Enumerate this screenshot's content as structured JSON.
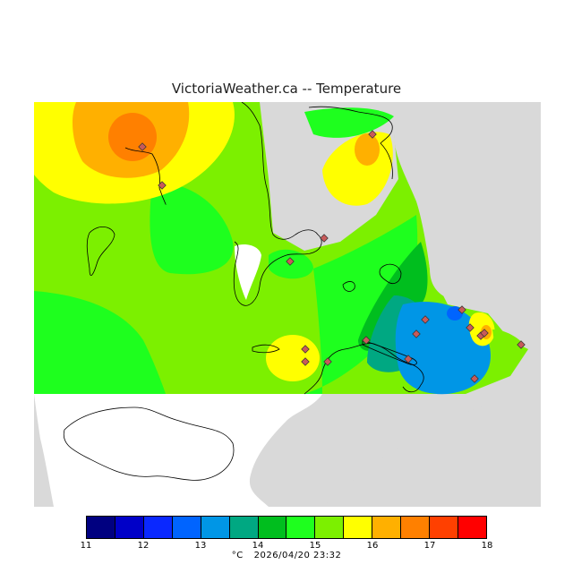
{
  "title": "VictoriaWeather.ca -- Temperature",
  "legend": {
    "ticks": [
      "11",
      "12",
      "13",
      "14",
      "15",
      "16",
      "17",
      "18"
    ],
    "colors": [
      "#000080",
      "#0000c8",
      "#0a28ff",
      "#0064ff",
      "#0096e6",
      "#00a882",
      "#00be1e",
      "#1eff1e",
      "#7cf000",
      "#ffff00",
      "#ffb000",
      "#ff8000",
      "#ff4000",
      "#ff0000"
    ]
  },
  "footer": {
    "unit": "°C",
    "timestamp": "2026/04/20 23:32"
  },
  "colors": {
    "land_base": "#7cf000",
    "unmapped": "#d9d9d9",
    "water": "#ffffff",
    "station_marker": "#c85a5a"
  }
}
